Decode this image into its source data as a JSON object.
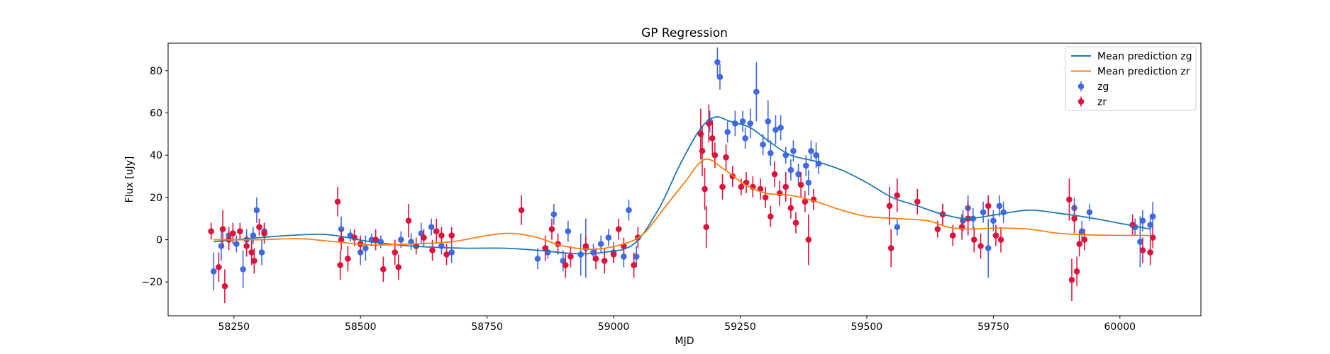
{
  "chart_data": {
    "type": "scatter",
    "title": "GP Regression",
    "xlabel": "MJD",
    "ylabel": "Flux [uJy]",
    "xlim": [
      58120,
      60160
    ],
    "ylim": [
      -36,
      93
    ],
    "xticks": [
      58250,
      58500,
      58750,
      59000,
      59250,
      59500,
      59750,
      60000
    ],
    "yticks": [
      -20,
      0,
      20,
      40,
      60,
      80
    ],
    "legend_position": "top-right",
    "legend": [
      {
        "label": "Mean prediction zg",
        "kind": "line",
        "color": "#1f77b4"
      },
      {
        "label": "Mean prediction zr",
        "kind": "line",
        "color": "#ff7f0e"
      },
      {
        "label": "zg",
        "kind": "marker",
        "color": "#4169e1"
      },
      {
        "label": "zr",
        "kind": "marker",
        "color": "#dc143c"
      }
    ],
    "lines": [
      {
        "name": "Mean prediction zg",
        "color": "#1f77b4",
        "points": [
          [
            58210,
            -1
          ],
          [
            58300,
            1
          ],
          [
            58400,
            2.5
          ],
          [
            58450,
            2
          ],
          [
            58520,
            -1
          ],
          [
            58600,
            -3
          ],
          [
            58700,
            -4
          ],
          [
            58780,
            -4
          ],
          [
            58850,
            -5
          ],
          [
            58920,
            -6.5
          ],
          [
            58980,
            -6
          ],
          [
            59040,
            -2
          ],
          [
            59090,
            15
          ],
          [
            59130,
            35
          ],
          [
            59170,
            52
          ],
          [
            59200,
            58
          ],
          [
            59230,
            56
          ],
          [
            59270,
            53
          ],
          [
            59310,
            46
          ],
          [
            59350,
            40
          ],
          [
            59400,
            37
          ],
          [
            59450,
            33
          ],
          [
            59500,
            27
          ],
          [
            59550,
            20
          ],
          [
            59600,
            16
          ],
          [
            59650,
            12
          ],
          [
            59700,
            10
          ],
          [
            59760,
            12
          ],
          [
            59820,
            14
          ],
          [
            59880,
            12.5
          ],
          [
            59950,
            10
          ],
          [
            60060,
            5
          ]
        ]
      },
      {
        "name": "Mean prediction zr",
        "color": "#ff7f0e",
        "points": [
          [
            58210,
            0
          ],
          [
            58300,
            0
          ],
          [
            58380,
            0.5
          ],
          [
            58450,
            -1
          ],
          [
            58520,
            -2.5
          ],
          [
            58600,
            -2
          ],
          [
            58680,
            -1
          ],
          [
            58750,
            2
          ],
          [
            58800,
            3
          ],
          [
            58850,
            1
          ],
          [
            58900,
            -3
          ],
          [
            58960,
            -4.5
          ],
          [
            59020,
            -2
          ],
          [
            59060,
            3
          ],
          [
            59100,
            15
          ],
          [
            59140,
            27
          ],
          [
            59180,
            38
          ],
          [
            59220,
            33
          ],
          [
            59260,
            26
          ],
          [
            59300,
            22
          ],
          [
            59350,
            21
          ],
          [
            59400,
            18
          ],
          [
            59450,
            14
          ],
          [
            59500,
            11
          ],
          [
            59560,
            10
          ],
          [
            59620,
            9
          ],
          [
            59660,
            6
          ],
          [
            59700,
            5
          ],
          [
            59760,
            5.5
          ],
          [
            59820,
            5
          ],
          [
            59880,
            3
          ],
          [
            59950,
            2.2
          ],
          [
            60060,
            2
          ]
        ]
      }
    ],
    "series": [
      {
        "name": "zg",
        "color": "#4169e1",
        "points": [
          [
            58210,
            -15,
            9
          ],
          [
            58225,
            -3,
            7
          ],
          [
            58240,
            2,
            4
          ],
          [
            58255,
            -2,
            4
          ],
          [
            58268,
            -14,
            9
          ],
          [
            58275,
            0,
            5
          ],
          [
            58288,
            2,
            4
          ],
          [
            58295,
            14,
            6
          ],
          [
            58305,
            -6,
            6
          ],
          [
            58310,
            4,
            4
          ],
          [
            58462,
            5,
            6
          ],
          [
            58480,
            2,
            3
          ],
          [
            58500,
            -6,
            6
          ],
          [
            58510,
            -4,
            6
          ],
          [
            58522,
            0,
            3
          ],
          [
            58540,
            -1,
            3
          ],
          [
            58580,
            0,
            4
          ],
          [
            58600,
            -1,
            4
          ],
          [
            58620,
            3,
            5
          ],
          [
            58640,
            6,
            4
          ],
          [
            58660,
            -3,
            4
          ],
          [
            58680,
            -6,
            5
          ],
          [
            58850,
            -9,
            5
          ],
          [
            58870,
            -6,
            3
          ],
          [
            58882,
            12,
            5
          ],
          [
            58900,
            -10,
            5
          ],
          [
            58910,
            4,
            5
          ],
          [
            58935,
            -7,
            10
          ],
          [
            58945,
            -4,
            14
          ],
          [
            58960,
            -6,
            4
          ],
          [
            58975,
            -2,
            4
          ],
          [
            58990,
            1,
            4
          ],
          [
            59000,
            -6,
            5
          ],
          [
            59020,
            -8,
            5
          ],
          [
            59030,
            14,
            5
          ],
          [
            59045,
            -8,
            5
          ],
          [
            59190,
            56,
            5
          ],
          [
            59205,
            84,
            7
          ],
          [
            59210,
            77,
            6
          ],
          [
            59225,
            51,
            5
          ],
          [
            59240,
            55,
            6
          ],
          [
            59255,
            56,
            5
          ],
          [
            59260,
            48,
            5
          ],
          [
            59270,
            55,
            7
          ],
          [
            59282,
            70,
            14
          ],
          [
            59295,
            45,
            5
          ],
          [
            59305,
            56,
            10
          ],
          [
            59310,
            41,
            6
          ],
          [
            59320,
            52,
            7
          ],
          [
            59330,
            53,
            6
          ],
          [
            59340,
            40,
            4
          ],
          [
            59350,
            33,
            5
          ],
          [
            59355,
            42,
            5
          ],
          [
            59365,
            31,
            5
          ],
          [
            59380,
            35,
            5
          ],
          [
            59385,
            27,
            6
          ],
          [
            59390,
            42,
            5
          ],
          [
            59400,
            40,
            6
          ],
          [
            59405,
            36,
            5
          ],
          [
            59560,
            6,
            4
          ],
          [
            59650,
            12,
            5
          ],
          [
            59690,
            9,
            5
          ],
          [
            59700,
            15,
            6
          ],
          [
            59710,
            10,
            5
          ],
          [
            59730,
            13,
            5
          ],
          [
            59740,
            -4,
            14
          ],
          [
            59750,
            9,
            5
          ],
          [
            59762,
            16,
            5
          ],
          [
            59770,
            13,
            5
          ],
          [
            59910,
            15,
            5
          ],
          [
            59925,
            4,
            5
          ],
          [
            59940,
            13,
            4
          ],
          [
            60030,
            6,
            4
          ],
          [
            60040,
            -1,
            12
          ],
          [
            60045,
            9,
            5
          ],
          [
            60060,
            7,
            5
          ],
          [
            60065,
            11,
            7
          ]
        ]
      },
      {
        "name": "zr",
        "color": "#dc143c",
        "points": [
          [
            58205,
            4,
            4
          ],
          [
            58220,
            -13,
            7
          ],
          [
            58228,
            5,
            9
          ],
          [
            58232,
            -22,
            8
          ],
          [
            58240,
            0,
            5
          ],
          [
            58248,
            3,
            5
          ],
          [
            58262,
            4,
            4
          ],
          [
            58275,
            -3,
            5
          ],
          [
            58285,
            -6,
            6
          ],
          [
            58290,
            -10,
            6
          ],
          [
            58300,
            6,
            4
          ],
          [
            58310,
            3,
            5
          ],
          [
            58455,
            18,
            7
          ],
          [
            58460,
            -12,
            7
          ],
          [
            58462,
            0,
            5
          ],
          [
            58475,
            -9,
            6
          ],
          [
            58488,
            1,
            4
          ],
          [
            58500,
            -2,
            4
          ],
          [
            58530,
            0,
            5
          ],
          [
            58545,
            -14,
            6
          ],
          [
            58568,
            -6,
            6
          ],
          [
            58575,
            -13,
            6
          ],
          [
            58595,
            9,
            8
          ],
          [
            58610,
            -3,
            4
          ],
          [
            58625,
            1,
            4
          ],
          [
            58642,
            -5,
            5
          ],
          [
            58650,
            4,
            6
          ],
          [
            58660,
            2,
            4
          ],
          [
            58670,
            -7,
            5
          ],
          [
            58680,
            2,
            4
          ],
          [
            58818,
            14,
            7
          ],
          [
            58865,
            -4,
            6
          ],
          [
            58878,
            5,
            5
          ],
          [
            58890,
            -2,
            5
          ],
          [
            58905,
            -12,
            6
          ],
          [
            58915,
            -8,
            5
          ],
          [
            58945,
            -3,
            5
          ],
          [
            58965,
            -9,
            5
          ],
          [
            58982,
            -10,
            6
          ],
          [
            59000,
            -7,
            4
          ],
          [
            59010,
            5,
            5
          ],
          [
            59020,
            -3,
            4
          ],
          [
            59040,
            -12,
            6
          ],
          [
            59048,
            1,
            5
          ],
          [
            59172,
            50,
            12
          ],
          [
            59175,
            42,
            12
          ],
          [
            59180,
            24,
            10
          ],
          [
            59183,
            6,
            10
          ],
          [
            59188,
            55,
            9
          ],
          [
            59195,
            48,
            8
          ],
          [
            59200,
            40,
            6
          ],
          [
            59215,
            25,
            6
          ],
          [
            59222,
            39,
            6
          ],
          [
            59235,
            30,
            5
          ],
          [
            59252,
            25,
            4
          ],
          [
            59262,
            27,
            5
          ],
          [
            59275,
            25,
            5
          ],
          [
            59290,
            24,
            5
          ],
          [
            59300,
            20,
            5
          ],
          [
            59310,
            11,
            5
          ],
          [
            59318,
            31,
            6
          ],
          [
            59328,
            22,
            6
          ],
          [
            59340,
            25,
            7
          ],
          [
            59350,
            15,
            5
          ],
          [
            59360,
            8,
            5
          ],
          [
            59370,
            26,
            6
          ],
          [
            59378,
            18,
            5
          ],
          [
            59385,
            0,
            12
          ],
          [
            59395,
            19,
            5
          ],
          [
            59545,
            16,
            9
          ],
          [
            59548,
            -4,
            9
          ],
          [
            59560,
            21,
            8
          ],
          [
            59600,
            18,
            6
          ],
          [
            59640,
            5,
            4
          ],
          [
            59650,
            12,
            5
          ],
          [
            59670,
            2,
            5
          ],
          [
            59688,
            6,
            6
          ],
          [
            59700,
            10,
            8
          ],
          [
            59712,
            0,
            6
          ],
          [
            59725,
            -3,
            6
          ],
          [
            59740,
            16,
            5
          ],
          [
            59755,
            2,
            5
          ],
          [
            59765,
            0,
            6
          ],
          [
            59900,
            19,
            10
          ],
          [
            59905,
            -19,
            10
          ],
          [
            59910,
            10,
            7
          ],
          [
            59915,
            -15,
            7
          ],
          [
            59920,
            -2,
            6
          ],
          [
            59930,
            0,
            5
          ],
          [
            60025,
            7,
            5
          ],
          [
            60045,
            -5,
            6
          ],
          [
            60060,
            -6,
            6
          ],
          [
            60065,
            1,
            5
          ]
        ]
      }
    ]
  }
}
